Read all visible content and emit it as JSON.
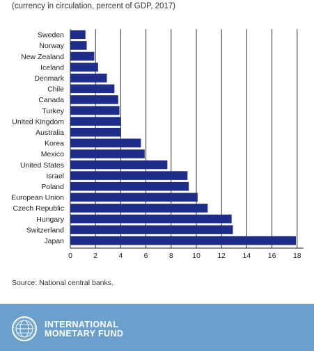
{
  "subtitle": "(currency in circulation, percent of GDP, 2017)",
  "source": "Source: National central banks.",
  "footer": {
    "org_line1": "INTERNATIONAL",
    "org_line2": "MONETARY FUND"
  },
  "colors": {
    "bar": "#1f2d8a",
    "footer": "#6b9fcc",
    "grid": "#333333"
  },
  "chart_data": {
    "type": "bar",
    "orientation": "horizontal",
    "title": "",
    "subtitle": "(currency in circulation, percent of GDP, 2017)",
    "xlabel": "",
    "ylabel": "",
    "categories": [
      "Sweden",
      "Norway",
      "New Zealand",
      "Iceland",
      "Denmark",
      "Chile",
      "Canada",
      "Turkey",
      "United Kingdom",
      "Australia",
      "Korea",
      "Mexico",
      "United States",
      "Israel",
      "Poland",
      "European Union",
      "Czech Republic",
      "Hungary",
      "Switzerland",
      "Japan"
    ],
    "values": [
      1.2,
      1.3,
      1.9,
      2.2,
      2.9,
      3.5,
      3.8,
      3.9,
      4.0,
      4.0,
      5.6,
      5.9,
      7.7,
      9.3,
      9.4,
      10.1,
      10.9,
      12.8,
      12.9,
      17.9
    ],
    "xticks": [
      0,
      2,
      4,
      6,
      8,
      10,
      12,
      14,
      16,
      18
    ],
    "xlim": [
      0,
      18.5
    ],
    "grid": true,
    "legend": "none"
  }
}
